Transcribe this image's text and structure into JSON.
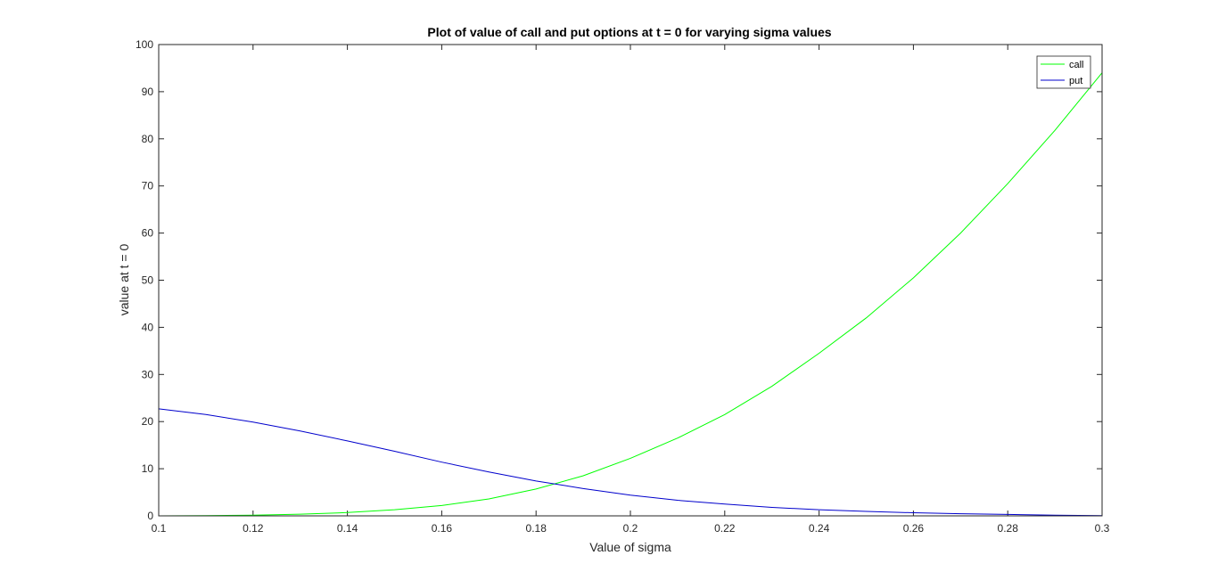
{
  "chart_data": {
    "type": "line",
    "title": "Plot of value of call and put options at t = 0 for varying sigma values",
    "xlabel": "Value of sigma",
    "ylabel": "value at t = 0",
    "xlim": [
      0.1,
      0.3
    ],
    "ylim": [
      0,
      100
    ],
    "xticks": [
      0.1,
      0.12,
      0.14,
      0.16,
      0.18,
      0.2,
      0.22,
      0.24,
      0.26,
      0.28,
      0.3
    ],
    "xtick_labels": [
      "0.1",
      "0.12",
      "0.14",
      "0.16",
      "0.18",
      "0.2",
      "0.22",
      "0.24",
      "0.26",
      "0.28",
      "0.3"
    ],
    "yticks": [
      0,
      10,
      20,
      30,
      40,
      50,
      60,
      70,
      80,
      90,
      100
    ],
    "ytick_labels": [
      "0",
      "10",
      "20",
      "30",
      "40",
      "50",
      "60",
      "70",
      "80",
      "90",
      "100"
    ],
    "grid": false,
    "legend_position": "top-right",
    "series": [
      {
        "name": "call",
        "color": "#00ff00",
        "x": [
          0.1,
          0.11,
          0.12,
          0.13,
          0.14,
          0.15,
          0.16,
          0.17,
          0.18,
          0.19,
          0.2,
          0.21,
          0.22,
          0.23,
          0.24,
          0.25,
          0.26,
          0.27,
          0.28,
          0.29,
          0.3
        ],
        "y": [
          0.0,
          0.05,
          0.15,
          0.35,
          0.7,
          1.3,
          2.2,
          3.6,
          5.7,
          8.5,
          12.2,
          16.5,
          21.5,
          27.5,
          34.5,
          42.0,
          50.5,
          60.0,
          70.5,
          81.8,
          94.0
        ]
      },
      {
        "name": "put",
        "color": "#0000cc",
        "x": [
          0.1,
          0.11,
          0.12,
          0.13,
          0.14,
          0.15,
          0.16,
          0.17,
          0.18,
          0.19,
          0.2,
          0.21,
          0.22,
          0.23,
          0.24,
          0.25,
          0.26,
          0.27,
          0.28,
          0.29,
          0.3
        ],
        "y": [
          22.7,
          21.5,
          19.9,
          18.0,
          15.9,
          13.7,
          11.4,
          9.3,
          7.4,
          5.8,
          4.4,
          3.3,
          2.5,
          1.8,
          1.3,
          0.95,
          0.65,
          0.45,
          0.3,
          0.15,
          0.05
        ]
      }
    ]
  }
}
